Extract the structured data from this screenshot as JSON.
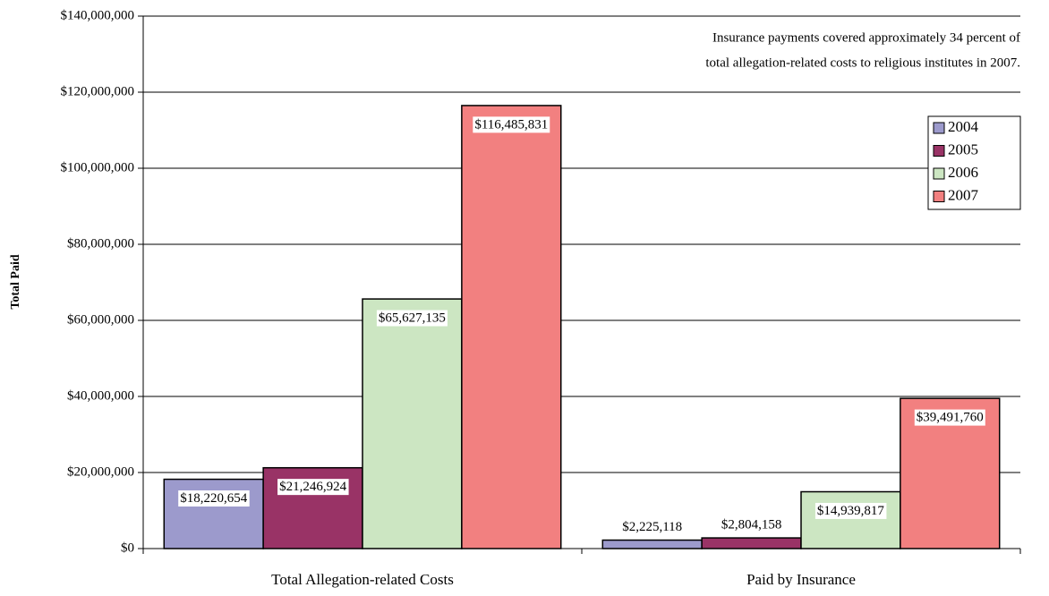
{
  "chart_data": {
    "type": "bar",
    "annotation": [
      "Insurance payments covered approximately 34 percent of",
      "total allegation-related costs to religious institutes in 2007."
    ],
    "y_label": "Total Paid",
    "categories": [
      "Total Allegation-related Costs",
      "Paid by Insurance"
    ],
    "series": [
      {
        "name": "2004",
        "color": "#9c9acc",
        "values": [
          18220654,
          2225118
        ],
        "value_labels": [
          "$18,220,654",
          "$2,225,118"
        ]
      },
      {
        "name": "2005",
        "color": "#993366",
        "values": [
          21246924,
          2804158
        ],
        "value_labels": [
          "$21,246,924",
          "$2,804,158"
        ]
      },
      {
        "name": "2006",
        "color": "#cce6c2",
        "values": [
          65627135,
          14939817
        ],
        "value_labels": [
          "$65,627,135",
          "$14,939,817"
        ]
      },
      {
        "name": "2007",
        "color": "#f28080",
        "values": [
          116485831,
          39491760
        ],
        "value_labels": [
          "$116,485,831",
          "$39,491,760"
        ]
      }
    ],
    "ylim": [
      0,
      140000000
    ],
    "yticks": [
      {
        "value": 0,
        "label": "$0"
      },
      {
        "value": 20000000,
        "label": "$20,000,000"
      },
      {
        "value": 40000000,
        "label": "$40,000,000"
      },
      {
        "value": 60000000,
        "label": "$60,000,000"
      },
      {
        "value": 80000000,
        "label": "$80,000,000"
      },
      {
        "value": 100000000,
        "label": "$100,000,000"
      },
      {
        "value": 120000000,
        "label": "$120,000,000"
      },
      {
        "value": 140000000,
        "label": "$140,000,000"
      }
    ],
    "grid": true,
    "legend": "upper right"
  }
}
